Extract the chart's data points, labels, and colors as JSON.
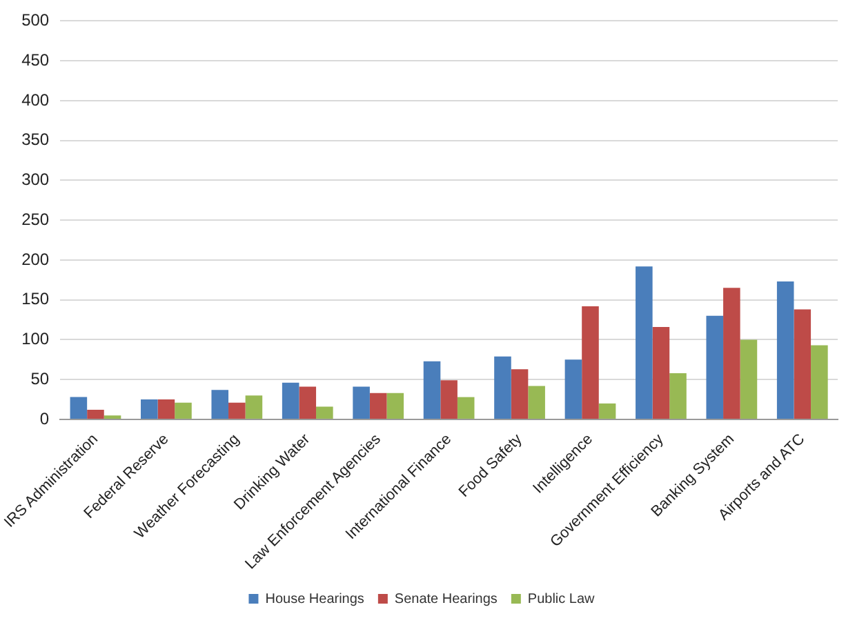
{
  "chart_data": {
    "type": "bar",
    "categories": [
      "IRS Administration",
      "Federal Reserve",
      "Weather Forecasting",
      "Drinking Water",
      "Law Enforcement Agencies",
      "International Finance",
      "Food Safety",
      "Intelligence",
      "Government Efficiency",
      "Banking System",
      "Airports and ATC"
    ],
    "series": [
      {
        "name": "House Hearings",
        "color": "#4a7ebb",
        "values": [
          28,
          25,
          37,
          46,
          41,
          73,
          79,
          75,
          192,
          130,
          173
        ]
      },
      {
        "name": "Senate Hearings",
        "color": "#be4b48",
        "values": [
          12,
          25,
          21,
          41,
          33,
          49,
          63,
          142,
          116,
          165,
          138
        ]
      },
      {
        "name": "Public Law",
        "color": "#98b954",
        "values": [
          5,
          21,
          30,
          16,
          33,
          28,
          42,
          20,
          58,
          100,
          93
        ]
      }
    ],
    "ylim": [
      0,
      500
    ],
    "yticks": [
      0,
      50,
      100,
      150,
      200,
      250,
      300,
      350,
      400,
      450,
      500
    ],
    "grid": "y",
    "legend": "bottom"
  }
}
